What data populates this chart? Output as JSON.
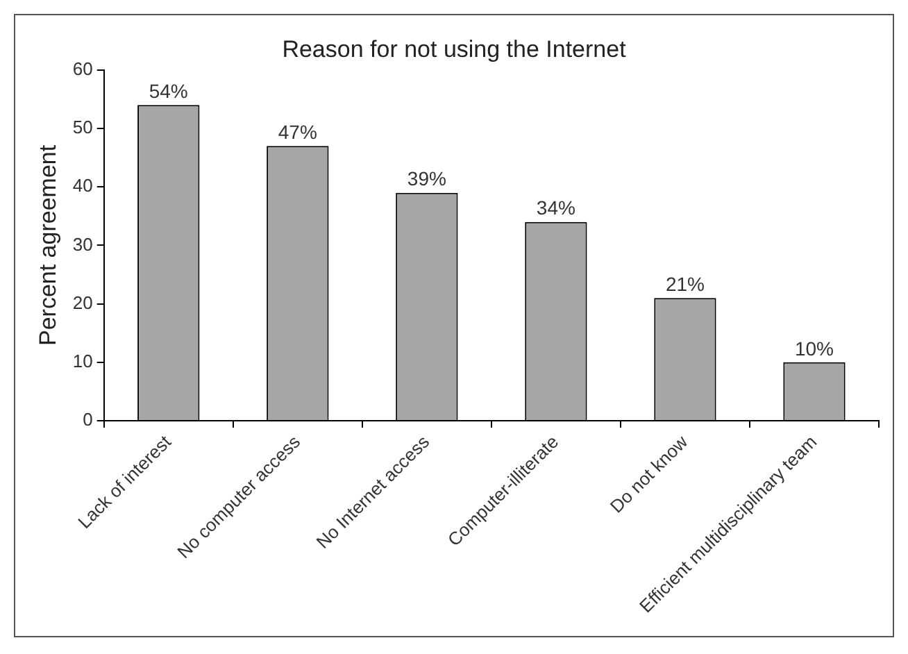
{
  "chart_data": {
    "type": "bar",
    "title": "Reason for not using the Internet",
    "ylabel": "Percent agreement",
    "categories": [
      "Lack of interest",
      "No computer access",
      "No Internet access",
      "Computer-illiterate",
      "Do not know",
      "Efficient multidisciplinary team"
    ],
    "values": [
      54,
      47,
      39,
      34,
      21,
      10
    ],
    "value_labels": [
      "54%",
      "47%",
      "39%",
      "34%",
      "21%",
      "10%"
    ],
    "color": "#a6a6a6",
    "ylim": [
      0,
      60
    ],
    "yticks": [
      0,
      10,
      20,
      30,
      40,
      50,
      60
    ],
    "grid": false,
    "legend": false
  }
}
